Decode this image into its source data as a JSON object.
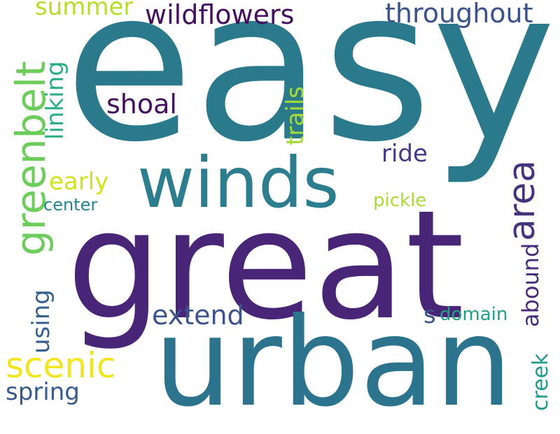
{
  "word_cloud": {
    "background": "#ffffff",
    "words": {
      "easy": {
        "text": "easy",
        "color": "#2a7a8c"
      },
      "great": {
        "text": "great",
        "color": "#482576"
      },
      "urban": {
        "text": "urban",
        "color": "#2c738e"
      },
      "winds": {
        "text": "winds",
        "color": "#2c7e8e"
      },
      "greenbelt": {
        "text": "greenbelt",
        "color": "#6ccd5a"
      },
      "area": {
        "text": "area",
        "color": "#46337e"
      },
      "scenic": {
        "text": "scenic",
        "color": "#f1e51d"
      },
      "wildflowers": {
        "text": "wildflowers",
        "color": "#440f5e"
      },
      "throughout": {
        "text": "throughout",
        "color": "#3b528b"
      },
      "extend": {
        "text": "extend",
        "color": "#3b528b"
      },
      "shoal": {
        "text": "shoal",
        "color": "#440f5e"
      },
      "trails": {
        "text": "trails",
        "color": "#a5db36"
      },
      "linking": {
        "text": "linking",
        "color": "#29af7f"
      },
      "using": {
        "text": "using",
        "color": "#35608d"
      },
      "spring": {
        "text": "spring",
        "color": "#38598c"
      },
      "early": {
        "text": "early",
        "color": "#d2e21b"
      },
      "summer": {
        "text": "summer",
        "color": "#b5de2b"
      },
      "ride": {
        "text": "ride",
        "color": "#443a83"
      },
      "abound": {
        "text": "abound",
        "color": "#472c7a"
      },
      "creek": {
        "text": "creek",
        "color": "#1f9a8a"
      },
      "s": {
        "text": "s",
        "color": "#3b528b"
      },
      "domain": {
        "text": "domain",
        "color": "#1fa187"
      },
      "pickle": {
        "text": "pickle",
        "color": "#a8db34"
      },
      "center": {
        "text": "center",
        "color": "#25838e"
      }
    }
  }
}
